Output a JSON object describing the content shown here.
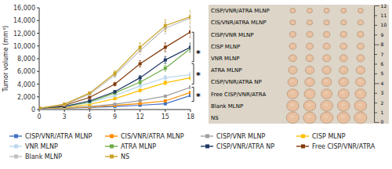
{
  "chart_data": [
    {
      "type": "line",
      "ylabel": "Tumor volume (mm³)",
      "x": [
        0,
        3,
        6,
        9,
        12,
        15,
        18
      ],
      "xlim": [
        0,
        18
      ],
      "xticks": [
        0,
        3,
        6,
        9,
        12,
        15,
        18
      ],
      "ylim": [
        0,
        16000
      ],
      "yticks": [
        0,
        {
          "value": 2000,
          "label": "2,000"
        },
        {
          "value": 4000,
          "label": "4,000"
        },
        {
          "value": 6000,
          "label": "6,000"
        },
        {
          "value": 8000,
          "label": "8,000"
        },
        {
          "value": 10000,
          "label": "10,000"
        },
        {
          "value": 12000,
          "label": "12,000"
        },
        {
          "value": 14000,
          "label": "14,000"
        },
        {
          "value": 16000,
          "label": "16,000"
        }
      ],
      "grid": false,
      "legend": "bottom",
      "series": [
        {
          "name": "CISP/VNR/ATRA MLNP",
          "color": "#4472C4",
          "marker": "square",
          "values": [
            200,
            220,
            320,
            480,
            680,
            900,
            2200
          ],
          "errors": [
            30,
            30,
            30,
            33.6,
            47.6,
            63,
            154
          ]
        },
        {
          "name": "CIS/VNR/ATRA MLNP",
          "color": "#FF8C00",
          "marker": "square",
          "values": [
            200,
            230,
            380,
            650,
            950,
            1350,
            2700
          ],
          "errors": [
            30,
            30,
            30,
            45.5,
            66.5,
            94.5,
            189
          ]
        },
        {
          "name": "CISP/VNR MLNP",
          "color": "#A0A0A0",
          "marker": "square",
          "values": [
            200,
            250,
            480,
            850,
            1400,
            2100,
            3500
          ],
          "errors": [
            30,
            30,
            33.6,
            59.5,
            98,
            147,
            245
          ]
        },
        {
          "name": "CISP MLNP",
          "color": "#FFC000",
          "marker": "square",
          "values": [
            200,
            320,
            800,
            1700,
            3000,
            4200,
            5000
          ],
          "errors": [
            30,
            30,
            56,
            119,
            210,
            294,
            350
          ]
        },
        {
          "name": "VNR MLNP",
          "color": "#BDD7EE",
          "marker": "square",
          "values": [
            200,
            400,
            1100,
            2200,
            3700,
            5000,
            5500
          ],
          "errors": [
            30,
            30,
            77,
            154,
            259,
            350,
            385
          ]
        },
        {
          "name": "ATRA MLNP",
          "color": "#70AD47",
          "marker": "square",
          "values": [
            200,
            480,
            1200,
            2600,
            4300,
            6500,
            9600
          ],
          "errors": [
            30,
            33.6,
            84,
            182,
            301,
            455,
            672
          ]
        },
        {
          "name": "CISP/VNR/ATRA NP",
          "color": "#1F3864",
          "marker": "square",
          "values": [
            200,
            480,
            1350,
            2800,
            5000,
            7800,
            9800
          ],
          "errors": [
            30,
            33.6,
            94.5,
            196,
            350,
            546,
            686
          ]
        },
        {
          "name": "Free CISP/VNR/ATRA",
          "color": "#843C0C",
          "marker": "square",
          "values": [
            200,
            650,
            1900,
            4000,
            7200,
            9800,
            12200
          ],
          "errors": [
            30,
            45.5,
            133,
            280,
            504,
            686,
            854
          ]
        },
        {
          "name": "Blank MLNP",
          "color": "#C0C0C0",
          "marker": "square",
          "values": [
            200,
            750,
            2400,
            5400,
            9300,
            12800,
            14400
          ],
          "errors": [
            30,
            52.5,
            168,
            378,
            651,
            896,
            1008
          ]
        },
        {
          "name": "NS",
          "color": "#C9A227",
          "marker": "square",
          "values": [
            200,
            850,
            2600,
            5700,
            9800,
            13200,
            14600
          ],
          "errors": [
            30,
            59.5,
            182,
            399,
            686,
            924,
            1022
          ]
        }
      ],
      "annotations": [
        {
          "text": "*",
          "y": 8960
        },
        {
          "text": "*",
          "y": 5600
        },
        {
          "text": "*",
          "y": 2240
        }
      ],
      "brackets": [
        {
          "from": 1280,
          "to": 3520
        },
        {
          "from": 4000,
          "to": 7200
        },
        {
          "from": 7520,
          "to": 12160
        }
      ]
    },
    {
      "type": "image",
      "labels": [
        "CISP/VNR/ATRA MLNP",
        "CIS/VNR/ATRA MLNP",
        "CISP/VNR MLNP",
        "CISP MLNP",
        "VNR MLNP",
        "ATRA MLNP",
        "CISP/VNR/ATRA NP",
        "Free CISP/VNR/ATRA",
        "Blank MLNP",
        "NS"
      ],
      "sizes": [
        0.032,
        0.034,
        0.038,
        0.042,
        0.046,
        0.052,
        0.058,
        0.065,
        0.072,
        0.075
      ],
      "ruler": [
        0,
        1,
        2,
        3,
        4,
        5,
        6,
        7,
        8,
        9,
        10,
        11,
        12
      ]
    }
  ]
}
